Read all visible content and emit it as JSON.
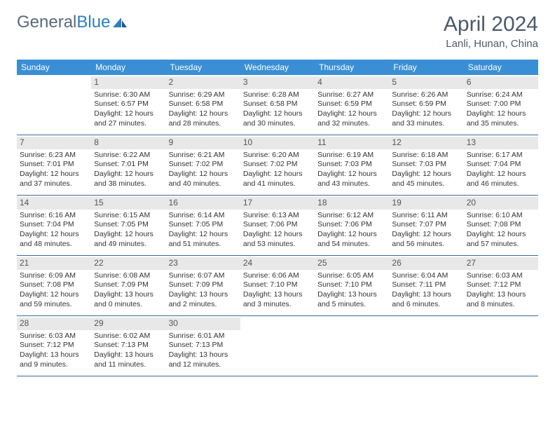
{
  "logo": {
    "text1": "General",
    "text2": "Blue"
  },
  "title": "April 2024",
  "subtitle": "Lanli, Hunan, China",
  "colors": {
    "header_bg": "#3a8fd4",
    "header_text": "#ffffff",
    "daynum_bg": "#e8e8e8",
    "border": "#3a6a9a",
    "title_color": "#4a5a6a"
  },
  "dayheads": [
    "Sunday",
    "Monday",
    "Tuesday",
    "Wednesday",
    "Thursday",
    "Friday",
    "Saturday"
  ],
  "first_day_offset": 1,
  "days": [
    {
      "n": "1",
      "sunrise": "6:30 AM",
      "sunset": "6:57 PM",
      "daylight": "12 hours and 27 minutes."
    },
    {
      "n": "2",
      "sunrise": "6:29 AM",
      "sunset": "6:58 PM",
      "daylight": "12 hours and 28 minutes."
    },
    {
      "n": "3",
      "sunrise": "6:28 AM",
      "sunset": "6:58 PM",
      "daylight": "12 hours and 30 minutes."
    },
    {
      "n": "4",
      "sunrise": "6:27 AM",
      "sunset": "6:59 PM",
      "daylight": "12 hours and 32 minutes."
    },
    {
      "n": "5",
      "sunrise": "6:26 AM",
      "sunset": "6:59 PM",
      "daylight": "12 hours and 33 minutes."
    },
    {
      "n": "6",
      "sunrise": "6:24 AM",
      "sunset": "7:00 PM",
      "daylight": "12 hours and 35 minutes."
    },
    {
      "n": "7",
      "sunrise": "6:23 AM",
      "sunset": "7:01 PM",
      "daylight": "12 hours and 37 minutes."
    },
    {
      "n": "8",
      "sunrise": "6:22 AM",
      "sunset": "7:01 PM",
      "daylight": "12 hours and 38 minutes."
    },
    {
      "n": "9",
      "sunrise": "6:21 AM",
      "sunset": "7:02 PM",
      "daylight": "12 hours and 40 minutes."
    },
    {
      "n": "10",
      "sunrise": "6:20 AM",
      "sunset": "7:02 PM",
      "daylight": "12 hours and 41 minutes."
    },
    {
      "n": "11",
      "sunrise": "6:19 AM",
      "sunset": "7:03 PM",
      "daylight": "12 hours and 43 minutes."
    },
    {
      "n": "12",
      "sunrise": "6:18 AM",
      "sunset": "7:03 PM",
      "daylight": "12 hours and 45 minutes."
    },
    {
      "n": "13",
      "sunrise": "6:17 AM",
      "sunset": "7:04 PM",
      "daylight": "12 hours and 46 minutes."
    },
    {
      "n": "14",
      "sunrise": "6:16 AM",
      "sunset": "7:04 PM",
      "daylight": "12 hours and 48 minutes."
    },
    {
      "n": "15",
      "sunrise": "6:15 AM",
      "sunset": "7:05 PM",
      "daylight": "12 hours and 49 minutes."
    },
    {
      "n": "16",
      "sunrise": "6:14 AM",
      "sunset": "7:05 PM",
      "daylight": "12 hours and 51 minutes."
    },
    {
      "n": "17",
      "sunrise": "6:13 AM",
      "sunset": "7:06 PM",
      "daylight": "12 hours and 53 minutes."
    },
    {
      "n": "18",
      "sunrise": "6:12 AM",
      "sunset": "7:06 PM",
      "daylight": "12 hours and 54 minutes."
    },
    {
      "n": "19",
      "sunrise": "6:11 AM",
      "sunset": "7:07 PM",
      "daylight": "12 hours and 56 minutes."
    },
    {
      "n": "20",
      "sunrise": "6:10 AM",
      "sunset": "7:08 PM",
      "daylight": "12 hours and 57 minutes."
    },
    {
      "n": "21",
      "sunrise": "6:09 AM",
      "sunset": "7:08 PM",
      "daylight": "12 hours and 59 minutes."
    },
    {
      "n": "22",
      "sunrise": "6:08 AM",
      "sunset": "7:09 PM",
      "daylight": "13 hours and 0 minutes."
    },
    {
      "n": "23",
      "sunrise": "6:07 AM",
      "sunset": "7:09 PM",
      "daylight": "13 hours and 2 minutes."
    },
    {
      "n": "24",
      "sunrise": "6:06 AM",
      "sunset": "7:10 PM",
      "daylight": "13 hours and 3 minutes."
    },
    {
      "n": "25",
      "sunrise": "6:05 AM",
      "sunset": "7:10 PM",
      "daylight": "13 hours and 5 minutes."
    },
    {
      "n": "26",
      "sunrise": "6:04 AM",
      "sunset": "7:11 PM",
      "daylight": "13 hours and 6 minutes."
    },
    {
      "n": "27",
      "sunrise": "6:03 AM",
      "sunset": "7:12 PM",
      "daylight": "13 hours and 8 minutes."
    },
    {
      "n": "28",
      "sunrise": "6:03 AM",
      "sunset": "7:12 PM",
      "daylight": "13 hours and 9 minutes."
    },
    {
      "n": "29",
      "sunrise": "6:02 AM",
      "sunset": "7:13 PM",
      "daylight": "13 hours and 11 minutes."
    },
    {
      "n": "30",
      "sunrise": "6:01 AM",
      "sunset": "7:13 PM",
      "daylight": "13 hours and 12 minutes."
    }
  ],
  "labels": {
    "sunrise": "Sunrise:",
    "sunset": "Sunset:",
    "daylight": "Daylight:"
  }
}
